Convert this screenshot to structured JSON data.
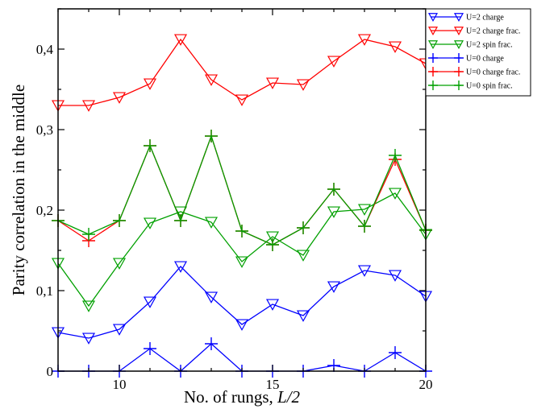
{
  "chart_data": {
    "type": "line",
    "xlabel": "No. of rungs,",
    "xlabel_var": "L/2",
    "ylabel": "Parity correlation in the middle",
    "xlim": [
      8,
      20
    ],
    "ylim": [
      0,
      0.45
    ],
    "xticks": [
      10,
      15,
      20
    ],
    "xtick_labels": [
      "10",
      "15",
      "20"
    ],
    "yticks": [
      0,
      0.1,
      0.2,
      0.3,
      0.4
    ],
    "ytick_labels": [
      "0",
      "0,1",
      "0,2",
      "0,3",
      "0,4"
    ],
    "grid": false,
    "legend_position": "top-right",
    "x": [
      8,
      9,
      10,
      11,
      12,
      13,
      14,
      15,
      16,
      17,
      18,
      19,
      20
    ],
    "series": [
      {
        "name": "U=2 charge",
        "color": "#0000ff",
        "marker": "triangle-down",
        "values": [
          0.048,
          0.041,
          0.052,
          0.086,
          0.13,
          0.092,
          0.058,
          0.083,
          0.069,
          0.105,
          0.125,
          0.119,
          0.093
        ]
      },
      {
        "name": "U=2 charge frac.",
        "color": "#ff0000",
        "marker": "triangle-down",
        "values": [
          0.33,
          0.33,
          0.34,
          0.357,
          0.412,
          0.362,
          0.337,
          0.358,
          0.356,
          0.385,
          0.412,
          0.403,
          0.382
        ]
      },
      {
        "name": "U=2 spin frac.",
        "color": "#00a000",
        "marker": "triangle-down",
        "values": [
          0.134,
          0.081,
          0.134,
          0.184,
          0.198,
          0.185,
          0.136,
          0.167,
          0.144,
          0.198,
          0.201,
          0.221,
          0.17
        ]
      },
      {
        "name": "U=0 charge",
        "color": "#0000ff",
        "marker": "plus",
        "values": [
          0.0,
          0.0,
          0.0,
          0.028,
          0.0,
          0.034,
          0.0,
          0.0,
          0.0,
          0.007,
          0.0,
          0.023,
          0.0
        ]
      },
      {
        "name": "U=0 charge frac.",
        "color": "#ff0000",
        "marker": "plus",
        "values": [
          0.187,
          0.162,
          0.187,
          0.28,
          0.187,
          0.292,
          0.174,
          0.157,
          0.178,
          0.226,
          0.18,
          0.263,
          0.175
        ]
      },
      {
        "name": "U=0 spin frac.",
        "color": "#00a000",
        "marker": "plus",
        "values": [
          0.187,
          0.17,
          0.187,
          0.28,
          0.187,
          0.292,
          0.174,
          0.157,
          0.178,
          0.226,
          0.18,
          0.268,
          0.175
        ]
      }
    ]
  }
}
